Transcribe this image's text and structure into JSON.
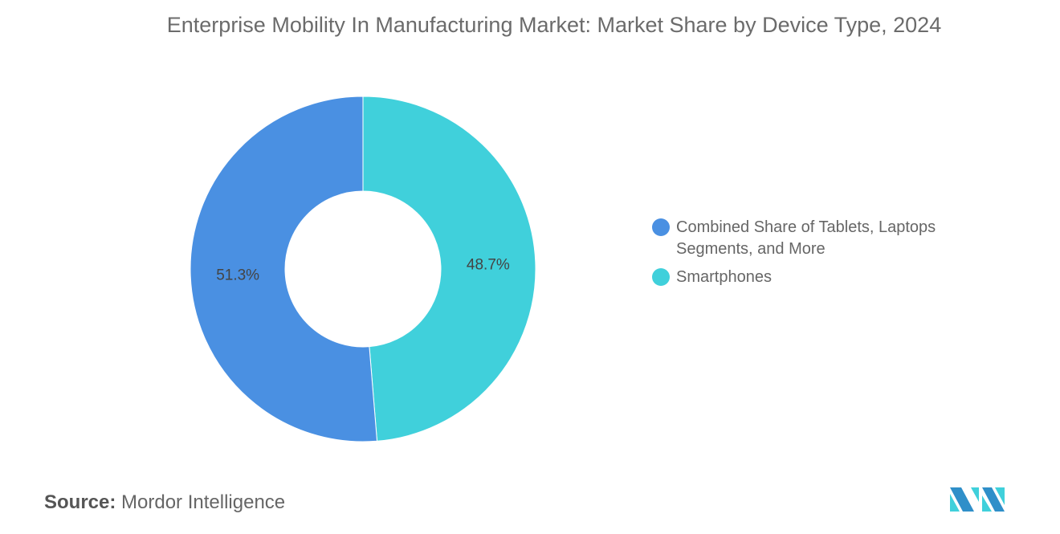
{
  "chart_data": {
    "type": "pie",
    "donut": true,
    "title": "Enterprise Mobility In Manufacturing Market: Market Share by Device Type, 2024",
    "categories": [
      "Smartphones",
      "Combined Share of Tablets, Laptops Segments, and More"
    ],
    "values": [
      48.7,
      51.3
    ],
    "data_labels": [
      "48.7%",
      "51.3%"
    ],
    "colors": [
      "#40D0DB",
      "#4A90E2"
    ],
    "legend": {
      "placement": "right",
      "entries": [
        {
          "label": "Combined Share of Tablets, Laptops Segments, and More",
          "color": "#4A90E2"
        },
        {
          "label": "Smartphones",
          "color": "#40D0DB"
        }
      ]
    }
  },
  "source": {
    "label": "Source:",
    "value": "Mordor Intelligence"
  },
  "logo": {
    "text": "Mordor Intelligence",
    "colors": [
      "#2F8FC9",
      "#40D0DB"
    ]
  }
}
